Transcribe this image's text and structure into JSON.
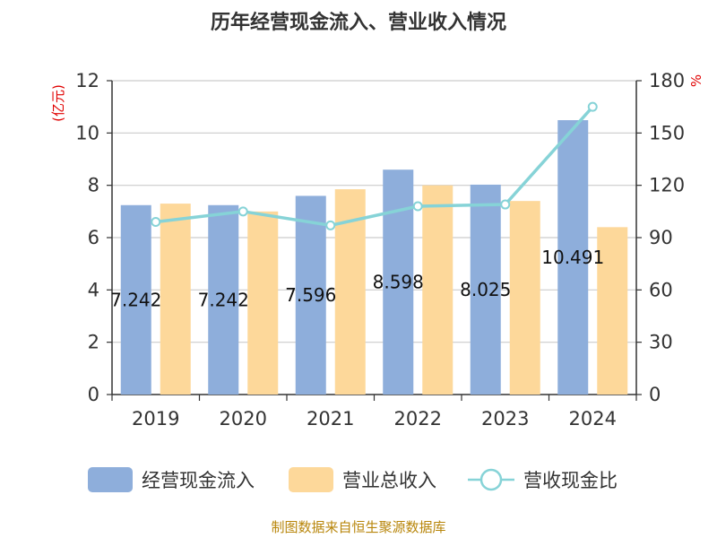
{
  "chart_data": {
    "type": "bar",
    "title": "历年经营现金流入、营业收入情况",
    "categories": [
      "2019",
      "2020",
      "2021",
      "2022",
      "2023",
      "2024"
    ],
    "series": [
      {
        "name": "经营现金流入",
        "type": "bar",
        "axis": "left",
        "color": "#8eaedb",
        "values": [
          7.242,
          7.242,
          7.596,
          8.598,
          8.025,
          10.491
        ]
      },
      {
        "name": "营业总收入",
        "type": "bar",
        "axis": "left",
        "color": "#fdd89a",
        "values": [
          7.3,
          7.0,
          7.85,
          8.0,
          7.4,
          6.4
        ]
      },
      {
        "name": "营收现金比",
        "type": "line",
        "axis": "right",
        "color": "#86d3d7",
        "values": [
          99,
          105,
          97,
          108,
          109,
          165
        ]
      }
    ],
    "bar_labels": [
      "7.242",
      "7.242",
      "7.596",
      "8.598",
      "8.025",
      "10.491"
    ],
    "y_left": {
      "label": "(亿元)",
      "ylim": [
        0,
        12
      ],
      "ticks": [
        "0",
        "2",
        "4",
        "6",
        "8",
        "10",
        "12"
      ]
    },
    "y_right": {
      "label": "%",
      "ylim": [
        0,
        180
      ],
      "ticks": [
        "0",
        "30",
        "60",
        "90",
        "120",
        "150",
        "180"
      ]
    },
    "grid": true,
    "legend_position": "bottom",
    "source": "制图数据来自恒生聚源数据库"
  }
}
